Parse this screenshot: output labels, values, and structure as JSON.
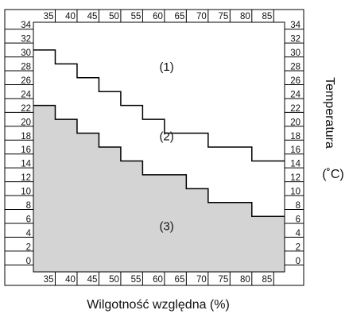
{
  "chart_data": {
    "type": "area",
    "xlabel": "Wilgotność względna (%)",
    "ylabel_rotated": "Temperatura",
    "ylabel_unit": "(˚C)",
    "x_ticks": [
      35,
      40,
      45,
      50,
      55,
      60,
      65,
      70,
      75,
      80,
      85
    ],
    "y_ticks": [
      0,
      2,
      4,
      6,
      8,
      10,
      12,
      14,
      16,
      18,
      20,
      22,
      24,
      26,
      28,
      30,
      32,
      34
    ],
    "xlim": [
      30,
      87.5
    ],
    "ylim": [
      -1,
      35
    ],
    "grid": false,
    "series": [
      {
        "id": "boundary-upper",
        "x": [
          30,
          35,
          35,
          40,
          40,
          45,
          45,
          50,
          50,
          55,
          55,
          60,
          60,
          65,
          65,
          70,
          70,
          75,
          75,
          80,
          80,
          85,
          85,
          87.5
        ],
        "y": [
          31,
          31,
          29,
          29,
          27,
          27,
          25,
          25,
          23,
          23,
          21,
          21,
          19,
          19,
          19,
          19,
          17,
          17,
          17,
          17,
          15,
          15,
          15,
          15
        ]
      },
      {
        "id": "boundary-lower",
        "x": [
          30,
          35,
          35,
          40,
          40,
          45,
          45,
          50,
          50,
          55,
          55,
          60,
          60,
          65,
          65,
          70,
          70,
          75,
          75,
          80,
          80,
          85,
          85,
          87.5
        ],
        "y": [
          23,
          23,
          21,
          21,
          19,
          19,
          17,
          17,
          15,
          15,
          13,
          13,
          13,
          13,
          11,
          11,
          9,
          9,
          9,
          9,
          7,
          7,
          7,
          7
        ],
        "fill": "#d4d4d4"
      }
    ],
    "annotations": [
      {
        "text": "(1)",
        "x": 60.5,
        "y": 28
      },
      {
        "text": "(2)",
        "x": 60.5,
        "y": 18
      },
      {
        "text": "(3)",
        "x": 60.5,
        "y": 5
      }
    ]
  },
  "colors": {
    "region_fill": "#d4d4d4",
    "line": "#000000",
    "background": "#ffffff"
  }
}
